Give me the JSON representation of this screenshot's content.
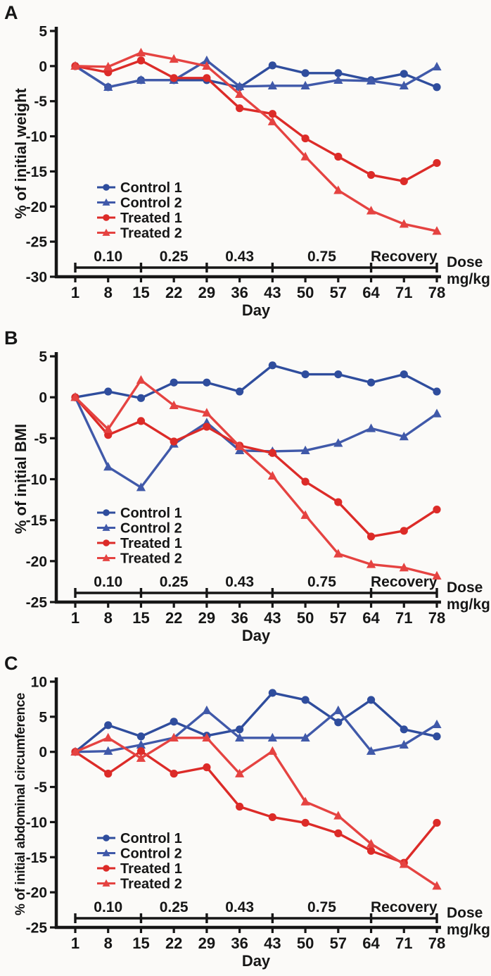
{
  "colors": {
    "control1_blue": "#2f4d9d",
    "control2_blue": "#4059a9",
    "treated1_red": "#dc2b28",
    "treated2_red": "#e54341",
    "ink": "#161616",
    "paper": "#fbfaf8"
  },
  "chart_data": [
    {
      "type": "line",
      "panel": "A",
      "ylabel": "% of initial weight",
      "xlabel": "Day",
      "x": [
        1,
        8,
        15,
        22,
        29,
        36,
        43,
        50,
        57,
        64,
        71,
        78
      ],
      "ylim": [
        -30,
        5
      ],
      "yticks": [
        5,
        0,
        -5,
        -10,
        -15,
        -20,
        -25,
        -30
      ],
      "grid": false,
      "legend_position": "lower-left",
      "series": [
        {
          "name": "Control 1",
          "marker": "circle",
          "color": "#2f4d9d",
          "values": [
            0,
            -3,
            -2,
            -2,
            -2,
            -3,
            0.1,
            -1,
            -1,
            -2,
            -1.1,
            -3
          ]
        },
        {
          "name": "Control 2",
          "marker": "triangle",
          "color": "#4059a9",
          "values": [
            0,
            -3,
            -2,
            -2,
            0.8,
            -2.9,
            -2.8,
            -2.8,
            -2,
            -2.1,
            -2.8,
            -0.1
          ]
        },
        {
          "name": "Treated 1",
          "marker": "circle",
          "color": "#dc2b28",
          "values": [
            0,
            -0.9,
            0.8,
            -1.7,
            -1.7,
            -6,
            -6.8,
            -10.3,
            -12.9,
            -15.5,
            -16.4,
            -13.8
          ]
        },
        {
          "name": "Treated 2",
          "marker": "triangle",
          "color": "#e54341",
          "values": [
            0,
            -0.1,
            1.9,
            1,
            0,
            -4,
            -7.9,
            -12.9,
            -17.7,
            -20.6,
            -22.5,
            -23.5
          ]
        }
      ],
      "dose_axis": {
        "label_lines": [
          "Dose",
          "mg/kg"
        ],
        "breaks": [
          1,
          15,
          29,
          43,
          64,
          78
        ],
        "segments": [
          {
            "label": "0.10",
            "from": 1,
            "to": 15
          },
          {
            "label": "0.25",
            "from": 15,
            "to": 29
          },
          {
            "label": "0.43",
            "from": 29,
            "to": 43
          },
          {
            "label": "0.75",
            "from": 43,
            "to": 64
          },
          {
            "label": "Recovery",
            "from": 64,
            "to": 78
          }
        ]
      }
    },
    {
      "type": "line",
      "panel": "B",
      "ylabel": "% of initial BMI",
      "xlabel": "Day",
      "x": [
        1,
        8,
        15,
        22,
        29,
        36,
        43,
        50,
        57,
        64,
        71,
        78
      ],
      "ylim": [
        -25,
        5
      ],
      "yticks": [
        5,
        0,
        -5,
        -10,
        -15,
        -20,
        -25
      ],
      "grid": false,
      "legend_position": "lower-left",
      "series": [
        {
          "name": "Control 1",
          "marker": "circle",
          "color": "#2f4d9d",
          "values": [
            0,
            0.7,
            -0.1,
            1.8,
            1.8,
            0.7,
            3.9,
            2.8,
            2.8,
            1.8,
            2.8,
            0.7
          ]
        },
        {
          "name": "Control 2",
          "marker": "triangle",
          "color": "#4059a9",
          "values": [
            0,
            -8.5,
            -11,
            -5.7,
            -3.1,
            -6.5,
            -6.6,
            -6.5,
            -5.6,
            -3.8,
            -4.8,
            -2
          ]
        },
        {
          "name": "Treated 1",
          "marker": "circle",
          "color": "#dc2b28",
          "values": [
            0,
            -4.6,
            -2.9,
            -5.4,
            -3.6,
            -5.9,
            -6.8,
            -10.3,
            -12.8,
            -17,
            -16.3,
            -13.7
          ]
        },
        {
          "name": "Treated 2",
          "marker": "triangle",
          "color": "#e54341",
          "values": [
            0,
            -3.9,
            2.1,
            -1,
            -1.9,
            -6,
            -9.6,
            -14.4,
            -19.1,
            -20.4,
            -20.8,
            -21.8
          ]
        }
      ],
      "dose_axis": {
        "label_lines": [
          "Dose",
          "mg/kg"
        ],
        "breaks": [
          1,
          15,
          29,
          43,
          64,
          78
        ],
        "segments": [
          {
            "label": "0.10",
            "from": 1,
            "to": 15
          },
          {
            "label": "0.25",
            "from": 15,
            "to": 29
          },
          {
            "label": "0.43",
            "from": 29,
            "to": 43
          },
          {
            "label": "0.75",
            "from": 43,
            "to": 64
          },
          {
            "label": "Recovery",
            "from": 64,
            "to": 78
          }
        ]
      }
    },
    {
      "type": "line",
      "panel": "C",
      "ylabel": "% of initial abdominal circumference",
      "xlabel": "Day",
      "x": [
        1,
        8,
        15,
        22,
        29,
        36,
        43,
        50,
        57,
        64,
        71,
        78
      ],
      "ylim": [
        -25,
        10
      ],
      "yticks": [
        10,
        5,
        0,
        -5,
        -10,
        -15,
        -20,
        -25
      ],
      "grid": false,
      "legend_position": "lower-left",
      "series": [
        {
          "name": "Control 1",
          "marker": "circle",
          "color": "#2f4d9d",
          "values": [
            0,
            3.8,
            2.2,
            4.3,
            2.3,
            3.2,
            8.4,
            7.4,
            4.2,
            7.4,
            3.2,
            2.2
          ]
        },
        {
          "name": "Control 2",
          "marker": "triangle",
          "color": "#4059a9",
          "values": [
            0,
            0.1,
            1,
            2,
            5.9,
            2,
            2,
            2,
            5.9,
            0.1,
            1,
            3.9
          ]
        },
        {
          "name": "Treated 1",
          "marker": "circle",
          "color": "#dc2b28",
          "values": [
            0,
            -3.1,
            0.1,
            -3.1,
            -2.2,
            -7.8,
            -9.3,
            -10.1,
            -11.6,
            -14.1,
            -15.8,
            -10.1
          ]
        },
        {
          "name": "Treated 2",
          "marker": "triangle",
          "color": "#e54341",
          "values": [
            0,
            2,
            -0.9,
            2,
            2,
            -3.1,
            0.1,
            -7.1,
            -9.1,
            -13.1,
            -16,
            -19.1
          ]
        }
      ],
      "dose_axis": {
        "label_lines": [
          "Dose",
          "mg/kg"
        ],
        "breaks": [
          1,
          15,
          29,
          43,
          64,
          78
        ],
        "segments": [
          {
            "label": "0.10",
            "from": 1,
            "to": 15
          },
          {
            "label": "0.25",
            "from": 15,
            "to": 29
          },
          {
            "label": "0.43",
            "from": 29,
            "to": 43
          },
          {
            "label": "0.75",
            "from": 43,
            "to": 64
          },
          {
            "label": "Recovery",
            "from": 64,
            "to": 78
          }
        ]
      }
    }
  ],
  "legend": {
    "items": [
      "Control 1",
      "Control 2",
      "Treated 1",
      "Treated 2"
    ]
  }
}
